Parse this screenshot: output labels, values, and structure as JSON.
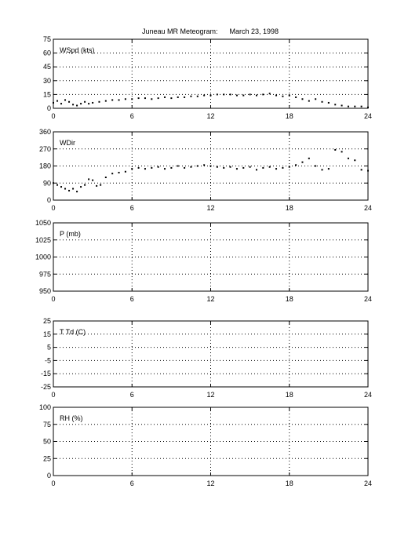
{
  "title": "Juneau MR Meteogram:      March 23, 1998",
  "colors": {
    "frame": "#000000",
    "grid": "#000000",
    "data": "#000000",
    "background": "#ffffff"
  },
  "chart_data": [
    {
      "type": "scatter",
      "label": "WSpd (kts)",
      "x_ticks": [
        "0",
        "6",
        "12",
        "18",
        "24"
      ],
      "xlim": [
        0,
        24
      ],
      "ylim": [
        0,
        75
      ],
      "y_ticks": [
        "0",
        "15",
        "30",
        "45",
        "60",
        "75"
      ],
      "grid": true,
      "series": [
        {
          "x": [
            0,
            0.3,
            0.6,
            0.9,
            1.2,
            1.5,
            1.8,
            2.1,
            2.4,
            2.7,
            3.0,
            3.5,
            4.0,
            4.5,
            5.0,
            5.5,
            6.0,
            6.5,
            7.0,
            7.5,
            8.0,
            8.5,
            9.0,
            9.5,
            10.0,
            10.5,
            11.0,
            11.5,
            12.0,
            12.5,
            13.0,
            13.5,
            14.0,
            14.5,
            15.0,
            15.5,
            16.0,
            16.5,
            17.0,
            17.5,
            18.0,
            18.5,
            19.0,
            19.5,
            20.0,
            20.5,
            21.0,
            21.5,
            22.0,
            22.5,
            23.0,
            23.5,
            24.0
          ],
          "y": [
            6,
            8,
            5,
            9,
            7,
            4,
            3,
            5,
            7,
            5,
            6,
            7,
            8,
            9,
            9,
            10,
            10,
            11,
            11,
            10,
            11,
            12,
            11,
            12,
            12,
            13,
            13,
            14,
            14,
            15,
            15,
            15,
            14,
            14,
            15,
            14,
            15,
            16,
            14,
            13,
            14,
            12,
            10,
            8,
            10,
            7,
            6,
            4,
            3,
            2,
            2,
            2,
            1
          ]
        }
      ]
    },
    {
      "type": "scatter",
      "label": "WDir",
      "x_ticks": [
        "0",
        "6",
        "12",
        "18",
        "24"
      ],
      "xlim": [
        0,
        24
      ],
      "ylim": [
        0,
        360
      ],
      "y_ticks": [
        "0",
        "90",
        "180",
        "270",
        "360"
      ],
      "grid": true,
      "series": [
        {
          "x": [
            0,
            0.3,
            0.6,
            0.9,
            1.2,
            1.5,
            1.8,
            2.1,
            2.4,
            2.7,
            3.0,
            3.3,
            3.6,
            4.0,
            4.5,
            5.0,
            5.5,
            6.0,
            6.5,
            7.0,
            7.5,
            8.0,
            8.5,
            9.0,
            9.5,
            10.0,
            10.5,
            11.0,
            11.5,
            12.0,
            12.5,
            13.0,
            13.5,
            14.0,
            14.5,
            15.0,
            15.5,
            16.0,
            16.5,
            17.0,
            17.5,
            18.0,
            18.5,
            19.0,
            19.5,
            20.0,
            20.5,
            21.0,
            21.5,
            22.0,
            22.5,
            23.0,
            23.5,
            24.0
          ],
          "y": [
            90,
            80,
            70,
            60,
            50,
            60,
            45,
            70,
            80,
            110,
            105,
            75,
            80,
            120,
            140,
            145,
            150,
            165,
            170,
            165,
            170,
            175,
            165,
            170,
            180,
            170,
            175,
            180,
            185,
            180,
            175,
            170,
            175,
            165,
            170,
            175,
            160,
            170,
            175,
            165,
            170,
            175,
            185,
            200,
            220,
            180,
            160,
            165,
            265,
            255,
            220,
            210,
            160,
            155
          ]
        }
      ]
    },
    {
      "type": "scatter",
      "label": "P (mb)",
      "x_ticks": [
        "0",
        "6",
        "12",
        "18",
        "24"
      ],
      "xlim": [
        0,
        24
      ],
      "ylim": [
        950,
        1050
      ],
      "y_ticks": [
        "950",
        "975",
        "1000",
        "1025",
        "1050"
      ],
      "grid": true,
      "series": []
    },
    {
      "type": "scatter",
      "label": "T Td (C)",
      "x_ticks": [
        "0",
        "6",
        "12",
        "18",
        "24"
      ],
      "xlim": [
        0,
        24
      ],
      "ylim": [
        -25,
        25
      ],
      "y_ticks": [
        "-25",
        "-15",
        "-5",
        "5",
        "15",
        "25"
      ],
      "grid": true,
      "series": []
    },
    {
      "type": "scatter",
      "label": "RH (%)",
      "x_ticks": [
        "0",
        "6",
        "12",
        "18",
        "24"
      ],
      "xlim": [
        0,
        24
      ],
      "ylim": [
        0,
        100
      ],
      "y_ticks": [
        "0",
        "25",
        "50",
        "75",
        "100"
      ],
      "grid": true,
      "series": []
    }
  ]
}
